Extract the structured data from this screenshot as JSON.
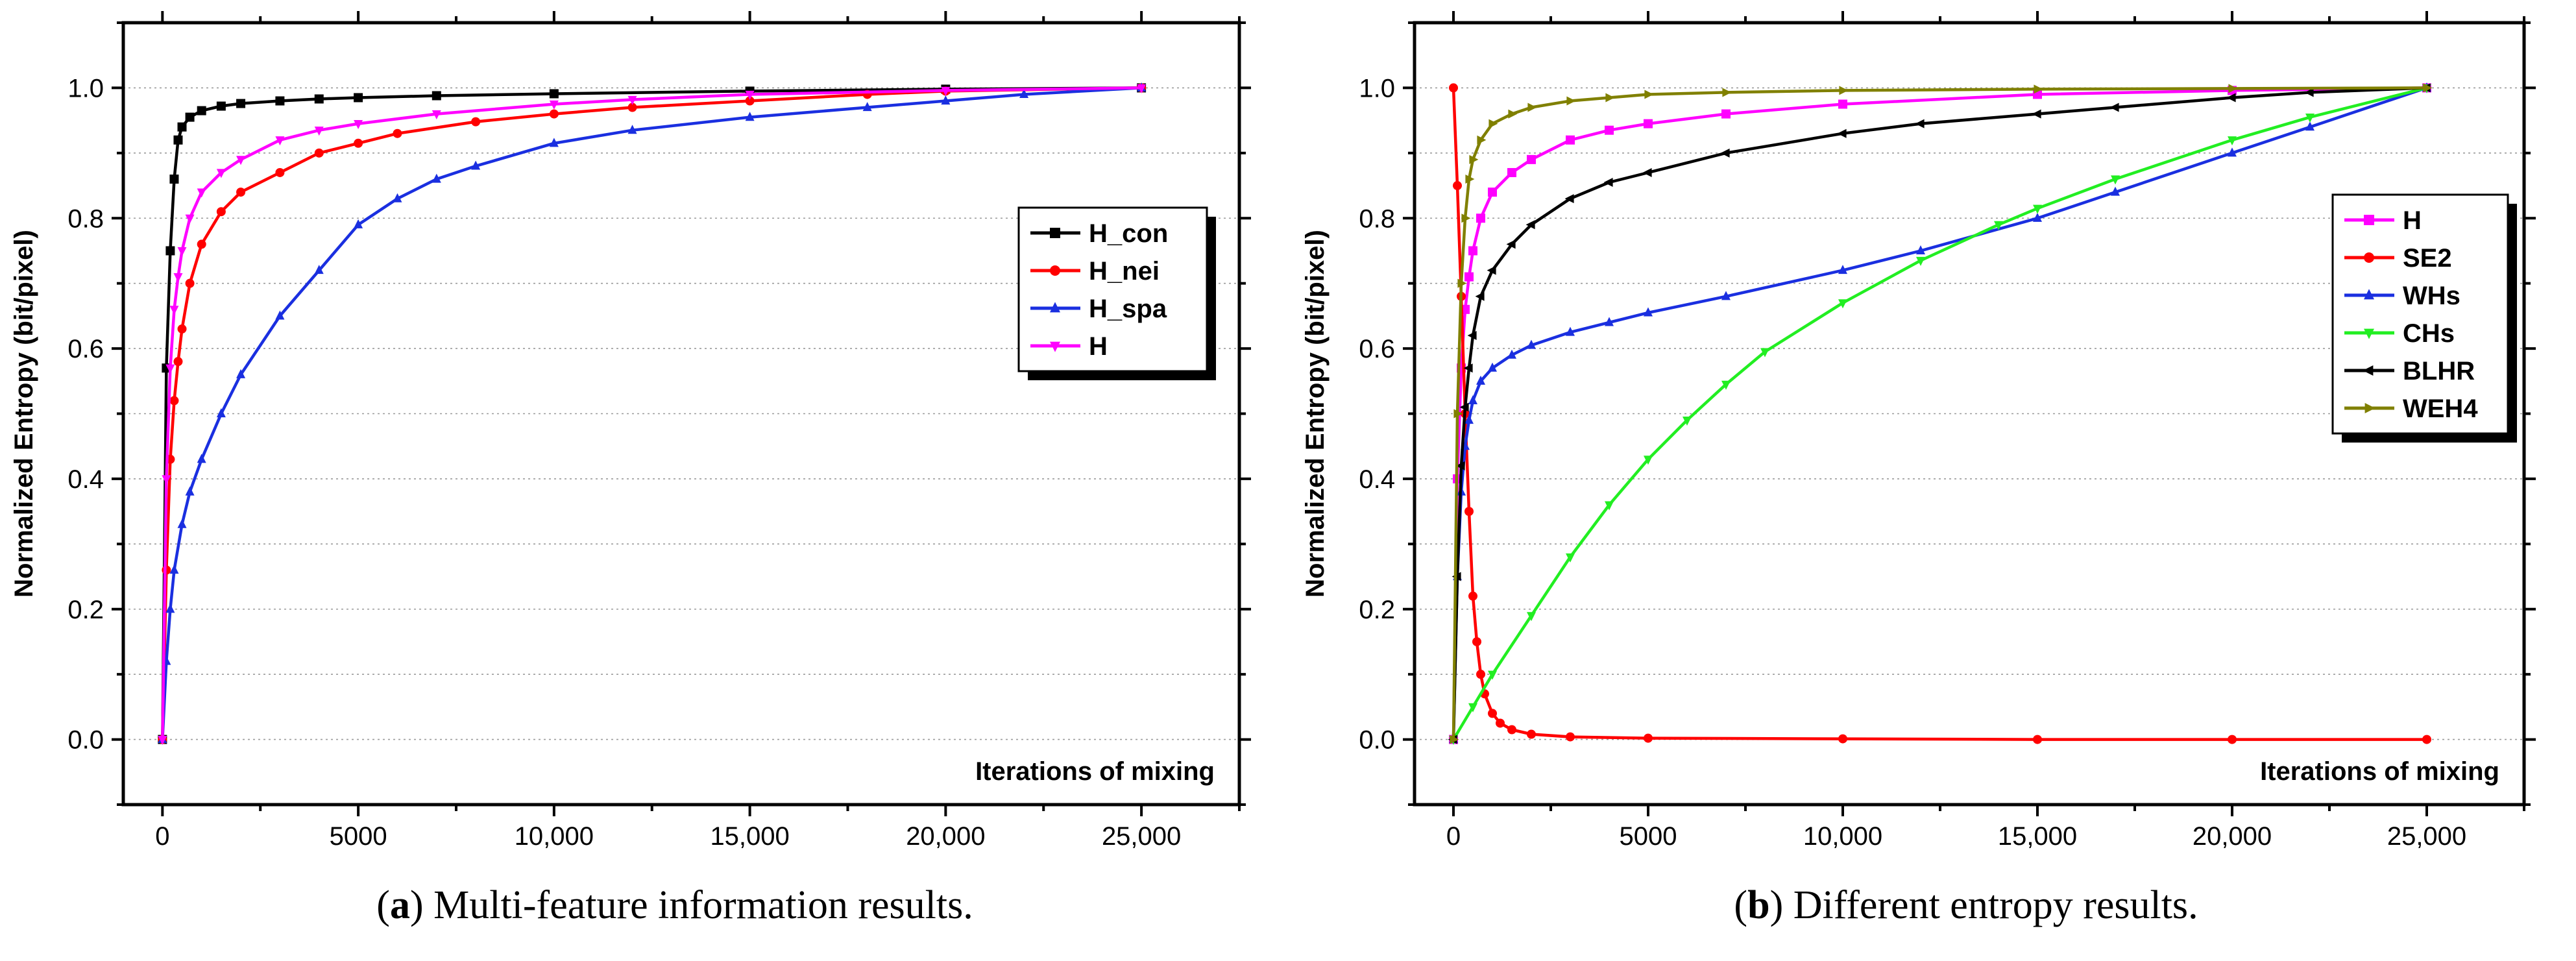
{
  "chart_data": [
    {
      "panel": "a",
      "type": "line",
      "caption_letter": "a",
      "caption_text": " Multi-feature information results.",
      "xlabel": "Iterations of mixing",
      "ylabel": "Normalized Entropy (bit/pixel)",
      "xlim": [
        -1000,
        27500
      ],
      "ylim": [
        -0.1,
        1.1
      ],
      "x_ticks": [
        0,
        5000,
        10000,
        15000,
        20000,
        25000
      ],
      "x_tick_labels": [
        "0",
        "5000",
        "10,000",
        "15,000",
        "20,000",
        "25,000"
      ],
      "y_ticks": [
        0.0,
        0.2,
        0.4,
        0.6,
        0.8,
        1.0
      ],
      "y_tick_labels": [
        "0.0",
        "0.2",
        "0.4",
        "0.6",
        "0.8",
        "1.0"
      ],
      "grid": "horizontal dotted",
      "legend_position": "right",
      "series": [
        {
          "name": "H_con",
          "color": "#000000",
          "marker": "square",
          "x": [
            0,
            100,
            200,
            300,
            400,
            500,
            700,
            1000,
            1500,
            2000,
            3000,
            4000,
            5000,
            7000,
            10000,
            15000,
            20000,
            25000
          ],
          "y": [
            0.0,
            0.57,
            0.75,
            0.86,
            0.92,
            0.94,
            0.955,
            0.965,
            0.972,
            0.976,
            0.98,
            0.983,
            0.985,
            0.988,
            0.991,
            0.995,
            0.998,
            1.0
          ]
        },
        {
          "name": "H_nei",
          "color": "#ff0000",
          "marker": "circle",
          "x": [
            0,
            100,
            200,
            300,
            400,
            500,
            700,
            1000,
            1500,
            2000,
            3000,
            4000,
            5000,
            6000,
            8000,
            10000,
            12000,
            15000,
            18000,
            20000,
            25000
          ],
          "y": [
            0.0,
            0.26,
            0.43,
            0.52,
            0.58,
            0.63,
            0.7,
            0.76,
            0.81,
            0.84,
            0.87,
            0.9,
            0.915,
            0.93,
            0.948,
            0.96,
            0.97,
            0.98,
            0.99,
            0.995,
            1.0
          ]
        },
        {
          "name": "H_spa",
          "color": "#1a2fe0",
          "marker": "triangle-up",
          "x": [
            0,
            100,
            200,
            300,
            500,
            700,
            1000,
            1500,
            2000,
            3000,
            4000,
            5000,
            6000,
            7000,
            8000,
            10000,
            12000,
            15000,
            18000,
            20000,
            22000,
            25000
          ],
          "y": [
            0.0,
            0.12,
            0.2,
            0.26,
            0.33,
            0.38,
            0.43,
            0.5,
            0.56,
            0.65,
            0.72,
            0.79,
            0.83,
            0.86,
            0.88,
            0.915,
            0.935,
            0.955,
            0.97,
            0.98,
            0.99,
            1.0
          ]
        },
        {
          "name": "H",
          "color": "#ff00ff",
          "marker": "triangle-down",
          "x": [
            0,
            100,
            200,
            300,
            400,
            500,
            700,
            1000,
            1500,
            2000,
            3000,
            4000,
            5000,
            7000,
            10000,
            12000,
            15000,
            20000,
            25000
          ],
          "y": [
            0.0,
            0.4,
            0.57,
            0.66,
            0.71,
            0.75,
            0.8,
            0.84,
            0.87,
            0.89,
            0.92,
            0.935,
            0.945,
            0.96,
            0.975,
            0.982,
            0.99,
            0.996,
            1.0
          ]
        }
      ],
      "annotations": [
        "Iterations of mixing"
      ]
    },
    {
      "panel": "b",
      "type": "line",
      "caption_letter": "b",
      "caption_text": " Different entropy results.",
      "xlabel": "Iterations of mixing",
      "ylabel": "Normalized Entropy (bit/pixel)",
      "xlim": [
        -1000,
        27500
      ],
      "ylim": [
        -0.1,
        1.1
      ],
      "x_ticks": [
        0,
        5000,
        10000,
        15000,
        20000,
        25000
      ],
      "x_tick_labels": [
        "0",
        "5000",
        "10,000",
        "15,000",
        "20,000",
        "25,000"
      ],
      "y_ticks": [
        0.0,
        0.2,
        0.4,
        0.6,
        0.8,
        1.0
      ],
      "y_tick_labels": [
        "0.0",
        "0.2",
        "0.4",
        "0.6",
        "0.8",
        "1.0"
      ],
      "grid": "horizontal dotted",
      "legend_position": "right",
      "series": [
        {
          "name": "H",
          "color": "#ff00ff",
          "marker": "square",
          "x": [
            0,
            100,
            200,
            300,
            400,
            500,
            700,
            1000,
            1500,
            2000,
            3000,
            4000,
            5000,
            7000,
            10000,
            15000,
            20000,
            25000
          ],
          "y": [
            0.0,
            0.4,
            0.57,
            0.66,
            0.71,
            0.75,
            0.8,
            0.84,
            0.87,
            0.89,
            0.92,
            0.935,
            0.945,
            0.96,
            0.975,
            0.99,
            0.996,
            1.0
          ]
        },
        {
          "name": "SE2",
          "color": "#ff0000",
          "marker": "circle",
          "x": [
            0,
            100,
            200,
            300,
            400,
            500,
            600,
            700,
            800,
            1000,
            1200,
            1500,
            2000,
            3000,
            5000,
            10000,
            15000,
            20000,
            25000
          ],
          "y": [
            1.0,
            0.85,
            0.68,
            0.5,
            0.35,
            0.22,
            0.15,
            0.1,
            0.07,
            0.04,
            0.025,
            0.015,
            0.008,
            0.004,
            0.002,
            0.001,
            0.0,
            0.0,
            0.0
          ]
        },
        {
          "name": "WHs",
          "color": "#1a2fe0",
          "marker": "triangle-up",
          "x": [
            0,
            100,
            200,
            300,
            400,
            500,
            700,
            1000,
            1500,
            2000,
            3000,
            4000,
            5000,
            7000,
            10000,
            12000,
            15000,
            17000,
            20000,
            22000,
            25000
          ],
          "y": [
            0.0,
            0.25,
            0.38,
            0.45,
            0.49,
            0.52,
            0.55,
            0.57,
            0.59,
            0.605,
            0.625,
            0.64,
            0.655,
            0.68,
            0.72,
            0.75,
            0.8,
            0.84,
            0.9,
            0.94,
            1.0
          ]
        },
        {
          "name": "CHs",
          "color": "#22ee22",
          "marker": "triangle-down",
          "x": [
            0,
            500,
            1000,
            2000,
            3000,
            4000,
            5000,
            6000,
            7000,
            8000,
            10000,
            12000,
            14000,
            15000,
            17000,
            20000,
            22000,
            25000
          ],
          "y": [
            0.0,
            0.05,
            0.1,
            0.19,
            0.28,
            0.36,
            0.43,
            0.49,
            0.545,
            0.595,
            0.67,
            0.735,
            0.79,
            0.815,
            0.86,
            0.92,
            0.955,
            1.0
          ]
        },
        {
          "name": "BLHR",
          "color": "#000000",
          "marker": "triangle-left",
          "x": [
            0,
            100,
            200,
            300,
            400,
            500,
            700,
            1000,
            1500,
            2000,
            3000,
            4000,
            5000,
            7000,
            10000,
            12000,
            15000,
            17000,
            20000,
            22000,
            25000
          ],
          "y": [
            0.0,
            0.25,
            0.42,
            0.51,
            0.57,
            0.62,
            0.68,
            0.72,
            0.76,
            0.79,
            0.83,
            0.855,
            0.87,
            0.9,
            0.93,
            0.945,
            0.96,
            0.97,
            0.985,
            0.993,
            1.0
          ]
        },
        {
          "name": "WEH4",
          "color": "#808000",
          "marker": "triangle-right",
          "x": [
            0,
            100,
            200,
            300,
            400,
            500,
            700,
            1000,
            1500,
            2000,
            3000,
            4000,
            5000,
            7000,
            10000,
            15000,
            20000,
            25000
          ],
          "y": [
            0.0,
            0.5,
            0.7,
            0.8,
            0.86,
            0.89,
            0.92,
            0.945,
            0.96,
            0.97,
            0.98,
            0.985,
            0.99,
            0.993,
            0.996,
            0.998,
            0.999,
            1.0
          ]
        }
      ],
      "annotations": [
        "Iterations of mixing"
      ]
    }
  ]
}
